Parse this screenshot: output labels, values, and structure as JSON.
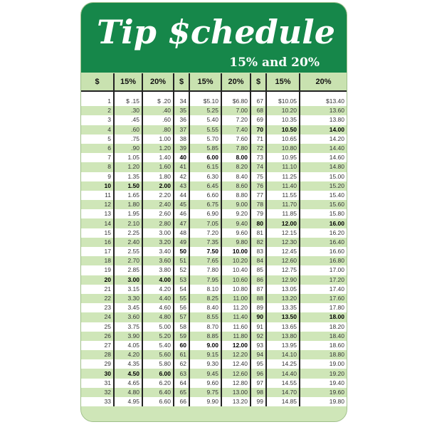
{
  "card": {
    "title": "Tip $chedule",
    "subtitle": "15% and 20%",
    "colors": {
      "header_green": "#16874a",
      "stripe_green": "#cfe6b8"
    },
    "columns": [
      "$",
      "15%",
      "20%",
      "$",
      "15%",
      "20%",
      "$",
      "15%",
      "20%"
    ],
    "rows": [
      [
        "1",
        "$ .15",
        "$ .20",
        "34",
        "$5.10",
        "$6.80",
        "67",
        "$10.05",
        "$13.40"
      ],
      [
        "2",
        ".30",
        ".40",
        "35",
        "5.25",
        "7.00",
        "68",
        "10.20",
        "13.60"
      ],
      [
        "3",
        ".45",
        ".60",
        "36",
        "5.40",
        "7.20",
        "69",
        "10.35",
        "13.80"
      ],
      [
        "4",
        ".60",
        ".80",
        "37",
        "5.55",
        "7.40",
        "70",
        "10.50",
        "14.00"
      ],
      [
        "5",
        ".75",
        "1.00",
        "38",
        "5.70",
        "7.60",
        "71",
        "10.65",
        "14.20"
      ],
      [
        "6",
        ".90",
        "1.20",
        "39",
        "5.85",
        "7.80",
        "72",
        "10.80",
        "14.40"
      ],
      [
        "7",
        "1.05",
        "1.40",
        "40",
        "6.00",
        "8.00",
        "73",
        "10.95",
        "14.60"
      ],
      [
        "8",
        "1.20",
        "1.60",
        "41",
        "6.15",
        "8.20",
        "74",
        "11.10",
        "14.80"
      ],
      [
        "9",
        "1.35",
        "1.80",
        "42",
        "6.30",
        "8.40",
        "75",
        "11.25",
        "15.00"
      ],
      [
        "10",
        "1.50",
        "2.00",
        "43",
        "6.45",
        "8.60",
        "76",
        "11.40",
        "15.20"
      ],
      [
        "11",
        "1.65",
        "2.20",
        "44",
        "6.60",
        "8.80",
        "77",
        "11.55",
        "15.40"
      ],
      [
        "12",
        "1.80",
        "2.40",
        "45",
        "6.75",
        "9.00",
        "78",
        "11.70",
        "15.60"
      ],
      [
        "13",
        "1.95",
        "2.60",
        "46",
        "6.90",
        "9.20",
        "79",
        "11.85",
        "15.80"
      ],
      [
        "14",
        "2.10",
        "2.80",
        "47",
        "7.05",
        "9.40",
        "80",
        "12.00",
        "16.00"
      ],
      [
        "15",
        "2.25",
        "3.00",
        "48",
        "7.20",
        "9.60",
        "81",
        "12.15",
        "16.20"
      ],
      [
        "16",
        "2.40",
        "3.20",
        "49",
        "7.35",
        "9.80",
        "82",
        "12.30",
        "16.40"
      ],
      [
        "17",
        "2.55",
        "3.40",
        "50",
        "7.50",
        "10.00",
        "83",
        "12.45",
        "16.60"
      ],
      [
        "18",
        "2.70",
        "3.60",
        "51",
        "7.65",
        "10.20",
        "84",
        "12.60",
        "16.80"
      ],
      [
        "19",
        "2.85",
        "3.80",
        "52",
        "7.80",
        "10.40",
        "85",
        "12.75",
        "17.00"
      ],
      [
        "20",
        "3.00",
        "4.00",
        "53",
        "7.95",
        "10.60",
        "86",
        "12.90",
        "17.20"
      ],
      [
        "21",
        "3.15",
        "4.20",
        "54",
        "8.10",
        "10.80",
        "87",
        "13.05",
        "17.40"
      ],
      [
        "22",
        "3.30",
        "4.40",
        "55",
        "8.25",
        "11.00",
        "88",
        "13.20",
        "17.60"
      ],
      [
        "23",
        "3.45",
        "4.60",
        "56",
        "8.40",
        "11.20",
        "89",
        "13.35",
        "17.80"
      ],
      [
        "24",
        "3.60",
        "4.80",
        "57",
        "8.55",
        "11.40",
        "90",
        "13.50",
        "18.00"
      ],
      [
        "25",
        "3.75",
        "5.00",
        "58",
        "8.70",
        "11.60",
        "91",
        "13.65",
        "18.20"
      ],
      [
        "26",
        "3.90",
        "5.20",
        "59",
        "8.85",
        "11.80",
        "92",
        "13.80",
        "18.40"
      ],
      [
        "27",
        "4.05",
        "5.40",
        "60",
        "9.00",
        "12.00",
        "93",
        "13.95",
        "18.60"
      ],
      [
        "28",
        "4.20",
        "5.60",
        "61",
        "9.15",
        "12.20",
        "94",
        "14.10",
        "18.80"
      ],
      [
        "29",
        "4.35",
        "5.80",
        "62",
        "9.30",
        "12.40",
        "95",
        "14.25",
        "19.00"
      ],
      [
        "30",
        "4.50",
        "6.00",
        "63",
        "9.45",
        "12.60",
        "96",
        "14.40",
        "19.20"
      ],
      [
        "31",
        "4.65",
        "6.20",
        "64",
        "9.60",
        "12.80",
        "97",
        "14.55",
        "19.40"
      ],
      [
        "32",
        "4.80",
        "6.40",
        "65",
        "9.75",
        "13.00",
        "98",
        "14.70",
        "19.60"
      ],
      [
        "33",
        "4.95",
        "6.60",
        "66",
        "9.90",
        "13.20",
        "99",
        "14.85",
        "19.80"
      ]
    ]
  }
}
